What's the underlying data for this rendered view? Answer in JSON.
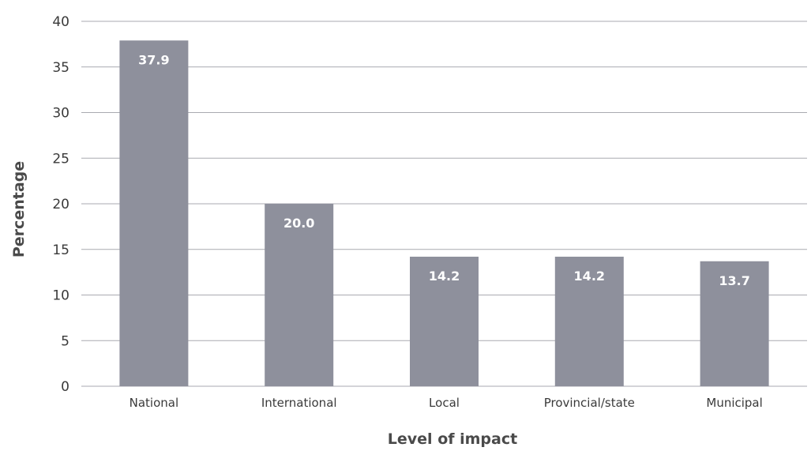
{
  "chart_data": {
    "type": "bar",
    "categories": [
      "National",
      "International",
      "Local",
      "Provincial/state",
      "Municipal"
    ],
    "values": [
      37.9,
      20.0,
      14.2,
      14.2,
      13.7
    ],
    "value_labels": [
      "37.9",
      "20.0",
      "14.2",
      "14.2",
      "13.7"
    ],
    "title": "",
    "xlabel": "Level of impact",
    "ylabel": "Percentage",
    "ylim": [
      0,
      40
    ],
    "yticks": [
      0,
      5,
      10,
      15,
      20,
      25,
      30,
      35,
      40
    ],
    "grid": true,
    "legend": "none",
    "colors": {
      "bar": "#8e909c",
      "grid": "#a9aab0",
      "data_label": "#ffffff"
    }
  }
}
